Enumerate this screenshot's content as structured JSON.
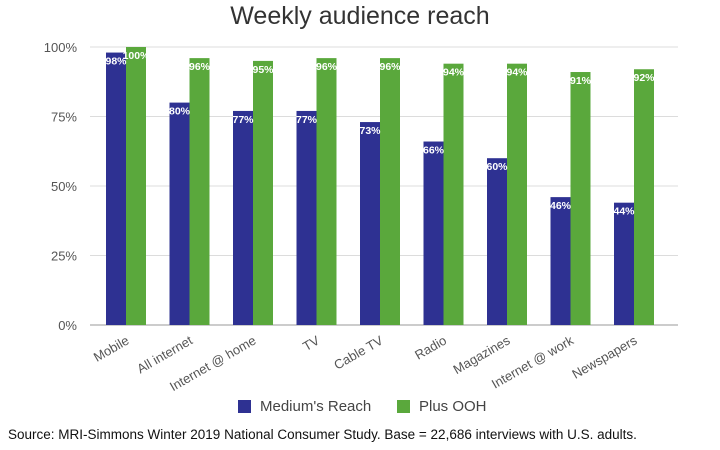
{
  "chart_data": {
    "type": "bar",
    "title": "Weekly audience reach",
    "categories": [
      "Mobile",
      "All internet",
      "Internet @ home",
      "TV",
      "Cable TV",
      "Radio",
      "Magazines",
      "Internet @ work",
      "Newspapers"
    ],
    "series": [
      {
        "name": "Medium's Reach",
        "color": "#2e3192",
        "values": [
          98,
          80,
          77,
          77,
          73,
          66,
          60,
          46,
          44
        ]
      },
      {
        "name": "Plus OOH",
        "color": "#5aa83c",
        "values": [
          100,
          96,
          95,
          96,
          96,
          94,
          94,
          91,
          92
        ]
      }
    ],
    "ylim": [
      0,
      100
    ],
    "yticks": [
      "0%",
      "25%",
      "50%",
      "75%",
      "100%"
    ],
    "ytick_values": [
      0,
      25,
      50,
      75,
      100
    ],
    "value_suffix": "%",
    "xlabel": "",
    "ylabel": "",
    "grid": true,
    "legend_position": "bottom"
  },
  "footer": {
    "source": "Source: MRI-Simmons Winter 2019 National Consumer Study. Base = 22,686 interviews with U.S. adults."
  }
}
